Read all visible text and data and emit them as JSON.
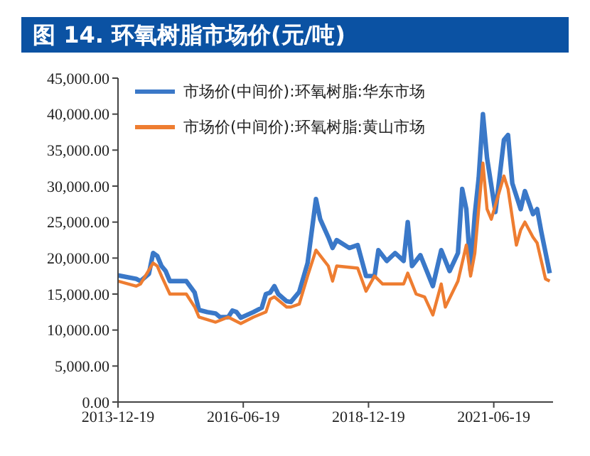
{
  "chart_data": {
    "type": "line",
    "title": "图 14. 环氧树脂市场价(元/吨)",
    "xlim": [
      "2013-12-19",
      "2022-08-25"
    ],
    "xticks": [
      "2013-12-19",
      "2016-06-19",
      "2018-12-19",
      "2021-06-19"
    ],
    "ylim": [
      0,
      45000
    ],
    "yticks": [
      {
        "value": 0,
        "label": "0.00"
      },
      {
        "value": 5000,
        "label": "5,000.00"
      },
      {
        "value": 10000,
        "label": "10,000.00"
      },
      {
        "value": 15000,
        "label": "15,000.00"
      },
      {
        "value": 20000,
        "label": "20,000.00"
      },
      {
        "value": 25000,
        "label": "25,000.00"
      },
      {
        "value": 30000,
        "label": "30,000.00"
      },
      {
        "value": 35000,
        "label": "35,000.00"
      },
      {
        "value": 40000,
        "label": "40,000.00"
      },
      {
        "value": 45000,
        "label": "45,000.00"
      }
    ],
    "grid": false,
    "legend": "top left",
    "marker": "none",
    "line_style": "solid",
    "series": [
      {
        "name": "市场价(中间价):环氧树脂:华东市场",
        "color": "#3a78c8",
        "x": [
          "2013-12-19",
          "2014-05",
          "2014-06",
          "2014-08",
          "2014-09",
          "2014-10",
          "2014-11",
          "2014-12",
          "2015-01",
          "2015-05",
          "2015-07",
          "2015-08",
          "2015-10",
          "2015-12",
          "2016-01",
          "2016-03",
          "2016-04",
          "2016-05",
          "2016-06",
          "2016-09",
          "2016-11",
          "2016-12",
          "2017-01",
          "2017-02",
          "2017-03",
          "2017-05",
          "2017-06",
          "2017-08",
          "2017-10",
          "2017-12",
          "2018-01",
          "2018-03",
          "2018-04",
          "2018-05",
          "2018-08",
          "2018-10",
          "2018-12",
          "2019-02",
          "2019-03",
          "2019-05",
          "2019-07",
          "2019-09",
          "2019-10",
          "2019-11",
          "2020-01",
          "2020-04",
          "2020-06",
          "2020-08",
          "2020-10",
          "2020-11",
          "2020-12",
          "2021-01",
          "2021-02",
          "2021-03",
          "2021-04",
          "2021-05",
          "2021-07",
          "2021-09",
          "2021-10",
          "2021-11",
          "2022-01",
          "2022-02",
          "2022-04",
          "2022-05",
          "2022-06",
          "2022-08"
        ],
        "values": [
          17600,
          17100,
          16800,
          17800,
          20700,
          20300,
          18900,
          18200,
          16800,
          16800,
          15200,
          12800,
          12500,
          12300,
          11800,
          11800,
          12700,
          12500,
          11700,
          12500,
          13100,
          15000,
          15200,
          16100,
          15000,
          14000,
          13900,
          15300,
          19300,
          28200,
          25400,
          22900,
          21400,
          22500,
          21400,
          21800,
          17500,
          17500,
          21100,
          19600,
          20700,
          19600,
          25000,
          18900,
          20400,
          16100,
          21100,
          18200,
          20700,
          29600,
          26800,
          18200,
          26100,
          31100,
          40000,
          33900,
          26400,
          36400,
          37100,
          30400,
          26800,
          29300,
          26100,
          26800,
          23600,
          17900
        ]
      },
      {
        "name": "市场价(中间价):环氧树脂:黄山市场",
        "color": "#ee7d31",
        "x": [
          "2013-12-19",
          "2014-05",
          "2014-06",
          "2014-09",
          "2014-10",
          "2014-11",
          "2015-01",
          "2015-05",
          "2015-07",
          "2015-08",
          "2015-12",
          "2016-03",
          "2016-06",
          "2016-09",
          "2016-12",
          "2017-01",
          "2017-02",
          "2017-05",
          "2017-06",
          "2017-08",
          "2017-10",
          "2017-12",
          "2018-03",
          "2018-04",
          "2018-05",
          "2018-10",
          "2018-12",
          "2019-02",
          "2019-04",
          "2019-09",
          "2019-10",
          "2019-12",
          "2020-02",
          "2020-04",
          "2020-06",
          "2020-07",
          "2020-10",
          "2020-12",
          "2021-01",
          "2021-02",
          "2021-03",
          "2021-04",
          "2021-05",
          "2021-06",
          "2021-09",
          "2021-10",
          "2021-12",
          "2022-01",
          "2022-02",
          "2022-04",
          "2022-05",
          "2022-07",
          "2022-08"
        ],
        "values": [
          16800,
          16100,
          16400,
          19300,
          18900,
          17500,
          15000,
          15000,
          13200,
          11800,
          11100,
          11800,
          10900,
          11800,
          12500,
          14300,
          14600,
          13200,
          13200,
          13600,
          17500,
          21100,
          18900,
          16800,
          18900,
          18600,
          15400,
          17500,
          16400,
          16400,
          17900,
          15000,
          14600,
          12100,
          16400,
          13200,
          16800,
          21800,
          17500,
          20700,
          26800,
          33200,
          26800,
          25400,
          31400,
          29600,
          21800,
          23900,
          25000,
          22900,
          22100,
          17100,
          16800
        ]
      }
    ]
  }
}
